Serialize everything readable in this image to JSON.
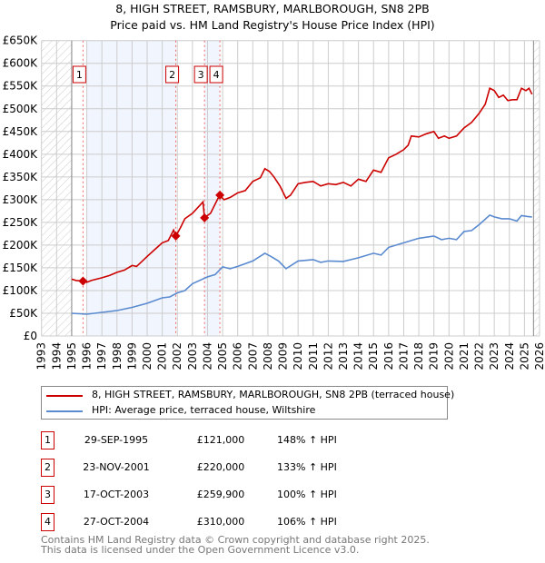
{
  "chart_data": {
    "type": "line",
    "title": "8, HIGH STREET, RAMSBURY, MARLBOROUGH, SN8 2PB",
    "subtitle": "Price paid vs. HM Land Registry's House Price Index (HPI)",
    "xlim": [
      1993,
      2026
    ],
    "ylim": [
      0,
      650000
    ],
    "x_ticks": [
      "1993",
      "1994",
      "1995",
      "1996",
      "1997",
      "1998",
      "1999",
      "2000",
      "2001",
      "2002",
      "2003",
      "2004",
      "2005",
      "2006",
      "2007",
      "2008",
      "2009",
      "2010",
      "2011",
      "2012",
      "2013",
      "2014",
      "2015",
      "2016",
      "2017",
      "2018",
      "2019",
      "2020",
      "2021",
      "2022",
      "2023",
      "2024",
      "2025",
      "2026"
    ],
    "y_ticks": [
      {
        "value": 0,
        "label": "£0"
      },
      {
        "value": 50000,
        "label": "£50K"
      },
      {
        "value": 100000,
        "label": "£100K"
      },
      {
        "value": 150000,
        "label": "£150K"
      },
      {
        "value": 200000,
        "label": "£200K"
      },
      {
        "value": 250000,
        "label": "£250K"
      },
      {
        "value": 300000,
        "label": "£300K"
      },
      {
        "value": 350000,
        "label": "£350K"
      },
      {
        "value": 400000,
        "label": "£400K"
      },
      {
        "value": 450000,
        "label": "£450K"
      },
      {
        "value": 500000,
        "label": "£500K"
      },
      {
        "value": 550000,
        "label": "£550K"
      },
      {
        "value": 600000,
        "label": "£600K"
      },
      {
        "value": 650000,
        "label": "£650K"
      }
    ],
    "grid": true,
    "hatched_ranges": [
      [
        1993,
        1995
      ],
      [
        2025.6,
        2026
      ]
    ],
    "shaded_ranges": [
      [
        1996,
        2001.9
      ],
      [
        2003.8,
        2004.8
      ]
    ],
    "series": [
      {
        "name": "8, HIGH STREET, RAMSBURY, MARLBOROUGH, SN8 2PB (terraced house)",
        "color": "#cc0000",
        "x": [
          1995,
          1995.3,
          1995.75,
          1996,
          1996.3,
          1997,
          1997.5,
          1998,
          1998.5,
          1999,
          1999.3,
          2000,
          2000.5,
          2001,
          2001.4,
          2001.75,
          2001.9,
          2002.2,
          2002.5,
          2003,
          2003.7,
          2003.8,
          2004.2,
          2004.8,
          2005.1,
          2005.5,
          2006,
          2006.5,
          2007,
          2007.5,
          2007.8,
          2008.1,
          2008.4,
          2008.8,
          2009.2,
          2009.5,
          2010,
          2010.5,
          2011,
          2011.5,
          2012,
          2012.5,
          2013,
          2013.5,
          2014,
          2014.5,
          2015,
          2015.5,
          2016,
          2016.5,
          2017,
          2017.3,
          2017.5,
          2018,
          2018.5,
          2019,
          2019.3,
          2019.7,
          2020,
          2020.5,
          2021,
          2021.5,
          2022,
          2022.4,
          2022.7,
          2023,
          2023.3,
          2023.6,
          2023.9,
          2024.2,
          2024.5,
          2024.8,
          2025.1,
          2025.3,
          2025.5
        ],
        "y": [
          125000,
          122000,
          121000,
          118000,
          122000,
          128000,
          133000,
          140000,
          145000,
          155000,
          153000,
          175000,
          190000,
          205000,
          210000,
          233000,
          220000,
          238000,
          258000,
          270000,
          295000,
          259900,
          270000,
          310000,
          300000,
          305000,
          315000,
          320000,
          340000,
          348000,
          368000,
          362000,
          350000,
          330000,
          303000,
          310000,
          335000,
          338000,
          340000,
          330000,
          335000,
          333000,
          338000,
          330000,
          345000,
          340000,
          365000,
          360000,
          392000,
          400000,
          410000,
          420000,
          440000,
          438000,
          445000,
          450000,
          435000,
          440000,
          435000,
          440000,
          458000,
          470000,
          490000,
          510000,
          545000,
          540000,
          525000,
          530000,
          518000,
          520000,
          520000,
          545000,
          540000,
          545000,
          532000
        ]
      },
      {
        "name": "HPI: Average price, terraced house, Wiltshire",
        "color": "#5a8acf",
        "x": [
          1995,
          1996,
          1997,
          1998,
          1999,
          2000,
          2001,
          2001.5,
          2002,
          2002.5,
          2003,
          2004,
          2004.5,
          2005,
          2005.5,
          2006,
          2007,
          2007.8,
          2008.2,
          2008.7,
          2009.2,
          2010,
          2011,
          2011.5,
          2012,
          2013,
          2014,
          2015,
          2015.5,
          2016,
          2017,
          2017.5,
          2018,
          2019,
          2019.5,
          2020,
          2020.5,
          2021,
          2021.5,
          2022,
          2022.7,
          2023,
          2023.5,
          2024,
          2024.5,
          2024.8,
          2025.2,
          2025.5
        ],
        "y": [
          50000,
          48000,
          52000,
          56000,
          63000,
          72000,
          84000,
          86000,
          95000,
          100000,
          115000,
          130000,
          135000,
          152000,
          148000,
          153000,
          165000,
          182000,
          175000,
          165000,
          148000,
          165000,
          168000,
          162000,
          165000,
          164000,
          172000,
          182000,
          178000,
          195000,
          205000,
          210000,
          215000,
          220000,
          212000,
          215000,
          212000,
          230000,
          232000,
          245000,
          266000,
          262000,
          258000,
          258000,
          253000,
          265000,
          263000,
          262000
        ]
      }
    ],
    "sales": [
      {
        "num": "1",
        "date": "29-SEP-1995",
        "x": 1995.75,
        "price": 121000,
        "price_label": "£121,000",
        "hpi": "148% ↑ HPI"
      },
      {
        "num": "2",
        "date": "23-NOV-2001",
        "x": 2001.9,
        "price": 220000,
        "price_label": "£220,000",
        "hpi": "133% ↑ HPI"
      },
      {
        "num": "3",
        "date": "17-OCT-2003",
        "x": 2003.8,
        "price": 259900,
        "price_label": "£259,900",
        "hpi": "100% ↑ HPI"
      },
      {
        "num": "4",
        "date": "27-OCT-2004",
        "x": 2004.82,
        "price": 310000,
        "price_label": "£310,000",
        "hpi": "106% ↑ HPI"
      }
    ]
  },
  "footer": {
    "line1": "Contains HM Land Registry data © Crown copyright and database right 2025.",
    "line2": "This data is licensed under the Open Government Licence v3.0."
  }
}
